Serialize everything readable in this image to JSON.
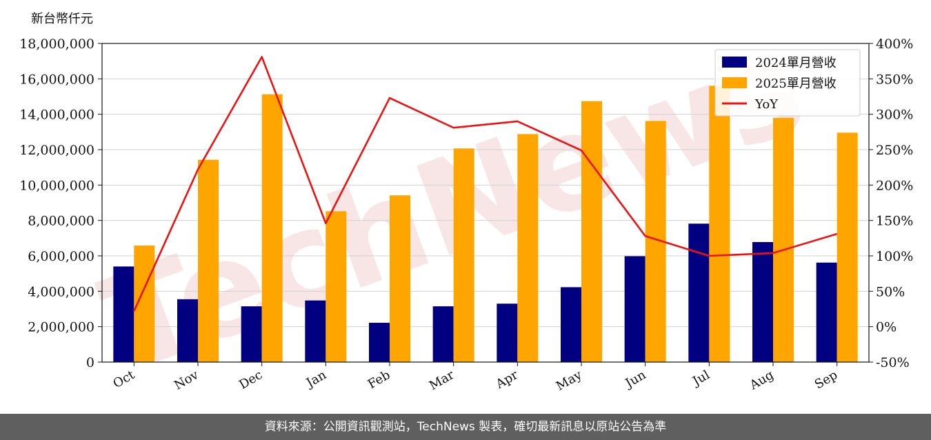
{
  "watermark": "TechNews",
  "footer": {
    "text": "資料來源：公開資訊觀測站，TechNews 製表，確切最新訊息以原站公告為準"
  },
  "chart_data": {
    "type": "bar",
    "ylabel": "新台幣仟元",
    "categories": [
      "Oct",
      "Nov",
      "Dec",
      "Jan",
      "Feb",
      "Mar",
      "Apr",
      "May",
      "Jun",
      "Jul",
      "Aug",
      "Sep"
    ],
    "series": [
      {
        "name": "2024單月營收",
        "type": "bar",
        "axis": "left",
        "color": "#000080",
        "values": [
          5400000,
          3550000,
          3150000,
          3480000,
          2220000,
          3150000,
          3300000,
          4230000,
          5980000,
          7820000,
          6780000,
          5620000
        ]
      },
      {
        "name": "2025單月營收",
        "type": "bar",
        "axis": "left",
        "color": "#ffa500",
        "values": [
          6580000,
          11430000,
          15130000,
          8520000,
          9420000,
          12070000,
          12880000,
          14740000,
          13620000,
          15610000,
          13800000,
          12960000
        ]
      },
      {
        "name": "YoY",
        "type": "line",
        "axis": "right",
        "color": "#ee1111",
        "values": [
          22,
          222,
          381,
          146,
          323,
          281,
          290,
          249,
          128,
          100,
          104,
          131
        ]
      }
    ],
    "y_left": {
      "min": 0,
      "max": 18000000,
      "ticks": [
        "0",
        "2,000,000",
        "4,000,000",
        "6,000,000",
        "8,000,000",
        "10,000,000",
        "12,000,000",
        "14,000,000",
        "16,000,000",
        "18,000,000"
      ]
    },
    "y_right": {
      "min": -50,
      "max": 400,
      "ticks": [
        "-50%",
        "0%",
        "50%",
        "100%",
        "150%",
        "200%",
        "250%",
        "300%",
        "350%",
        "400%"
      ]
    },
    "grid": true,
    "legend": "top-right"
  }
}
